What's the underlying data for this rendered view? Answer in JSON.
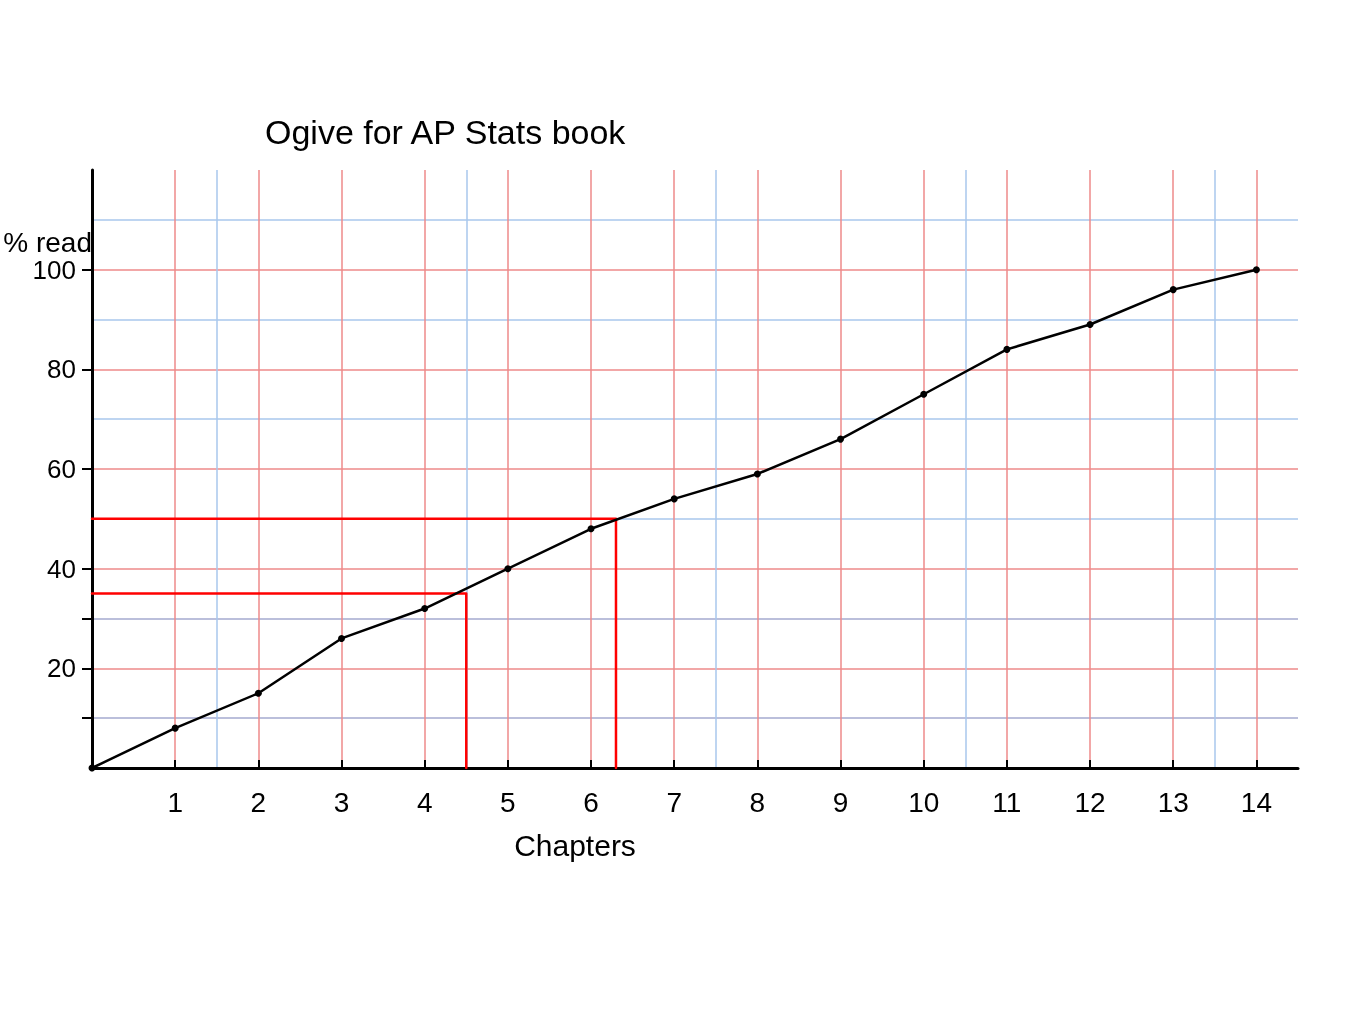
{
  "chart_data": {
    "type": "line",
    "title": "Ogive for AP Stats book",
    "xlabel": "Chapters",
    "ylabel": "% read",
    "series": [
      {
        "color": "#000000",
        "marker": "circle",
        "x": [
          0,
          1,
          2,
          3,
          4,
          5,
          6,
          7,
          8,
          9,
          10,
          11,
          12,
          13,
          14
        ],
        "values": [
          0,
          8,
          15,
          26,
          32,
          40,
          48,
          54,
          59,
          66,
          75,
          84,
          89,
          96,
          100
        ]
      },
      {
        "color": "#ff0000",
        "marker": "none",
        "x": [
          0,
          4.5,
          4.5
        ],
        "values": [
          35,
          35,
          0
        ]
      },
      {
        "color": "#ff0000",
        "marker": "none",
        "x": [
          0,
          6.3,
          6.3
        ],
        "values": [
          50,
          50,
          0
        ]
      }
    ],
    "xlim": [
      0,
      14.5
    ],
    "xticks": [
      1,
      2,
      3,
      4,
      5,
      6,
      7,
      8,
      9,
      10,
      11,
      12,
      13,
      14
    ],
    "ylim": [
      0,
      120
    ],
    "yticks": [
      {
        "value": 10,
        "label": null
      },
      20,
      {
        "value": 30,
        "label": null
      },
      40,
      60,
      80,
      100
    ],
    "grid": true,
    "line_style": "solid"
  }
}
